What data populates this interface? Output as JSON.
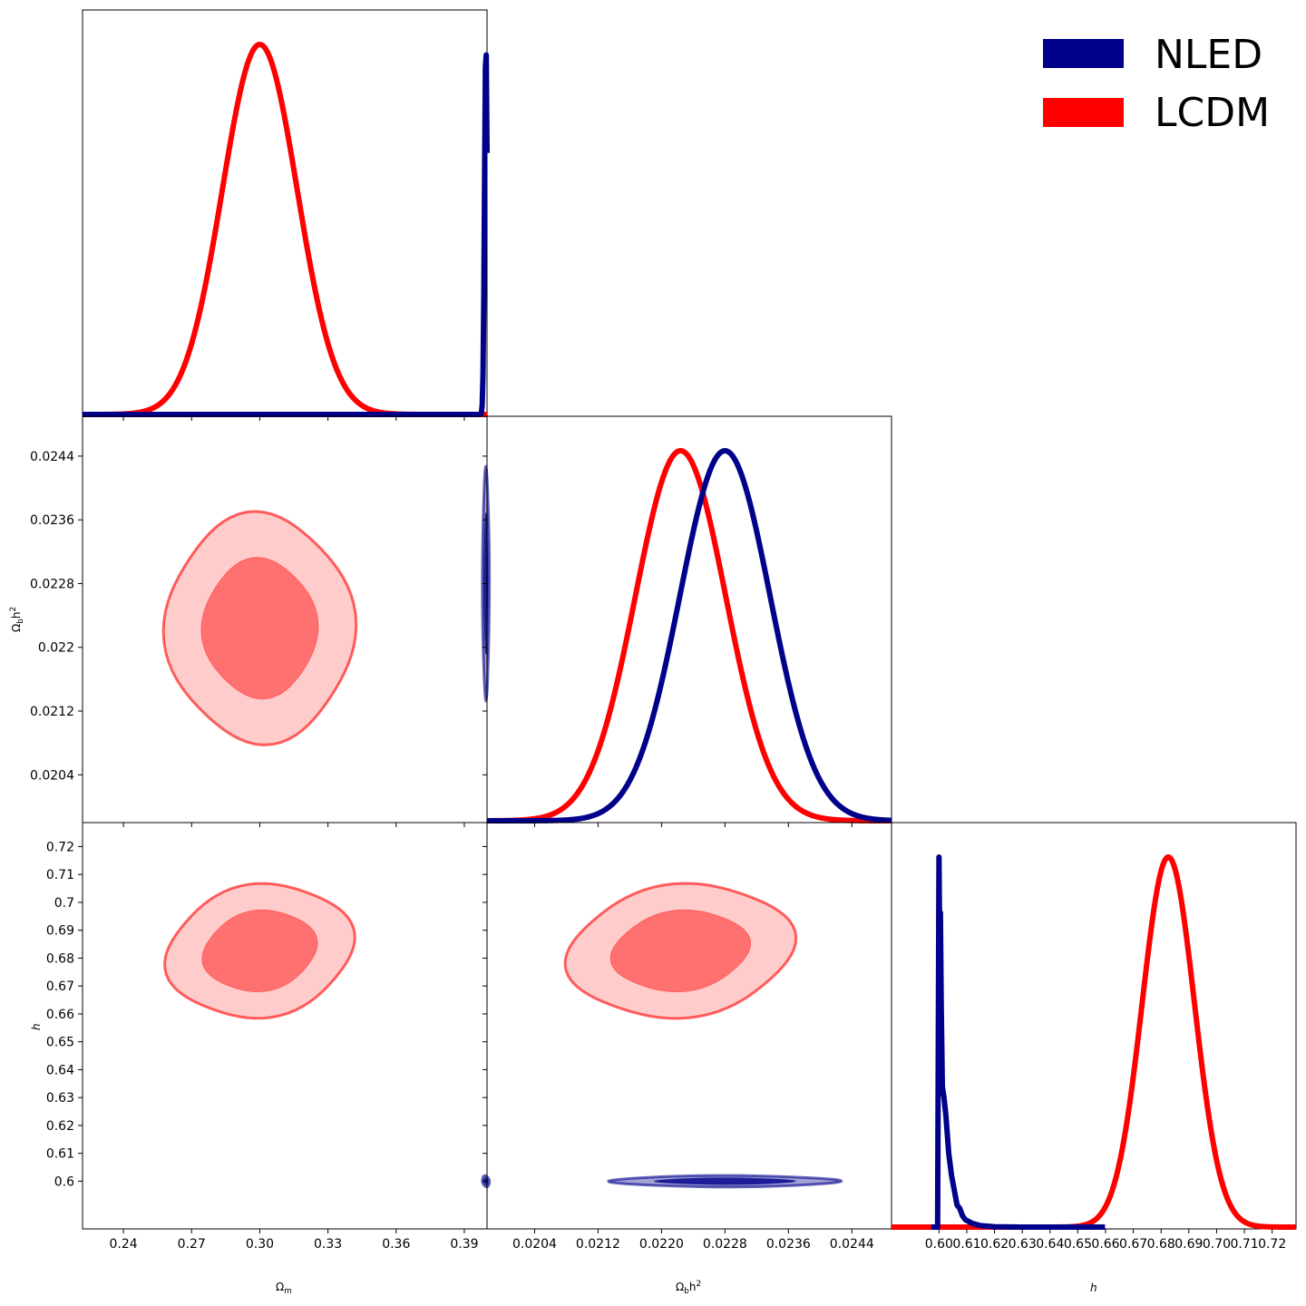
{
  "colors": {
    "NLED": "#00008b",
    "LCDM": "#ff0000"
  },
  "legend": {
    "placement": "top-right",
    "entries": [
      {
        "name": "NLED",
        "color": "#00008b"
      },
      {
        "name": "LCDM",
        "color": "#ff0000"
      }
    ]
  },
  "axis_labels": {
    "omega_m": {
      "base": "Ω",
      "sub": "m"
    },
    "omega_bh2": {
      "base": "Ω",
      "sub": "b",
      "main": "h",
      "sup": "2"
    },
    "h": {
      "base": "h"
    }
  },
  "chart_data": {
    "type": "corner",
    "parameters": [
      "Ω_m",
      "Ω_b h^2",
      "h"
    ],
    "ranges": {
      "omega_m": [
        0.222,
        0.4
      ],
      "omega_bh2": [
        0.0198,
        0.0249
      ],
      "h": [
        0.5829,
        0.7286
      ]
    },
    "ticks": {
      "omega_m": [
        "0.24",
        "0.27",
        "0.30",
        "0.33",
        "0.36",
        "0.39"
      ],
      "omega_bh2": [
        "0.0204",
        "0.0212",
        "0.0220",
        "0.0228",
        "0.0236",
        "0.0244"
      ],
      "omega_bh2_y": [
        "0.0204",
        "0.0212",
        "0.022",
        "0.0228",
        "0.0236",
        "0.0244"
      ],
      "h": [
        "0.60",
        "0.61",
        "0.62",
        "0.63",
        "0.64",
        "0.65",
        "0.66",
        "0.67",
        "0.68",
        "0.69",
        "0.70",
        "0.71",
        "0.72"
      ],
      "h_y": [
        "0.6",
        "0.61",
        "0.62",
        "0.63",
        "0.64",
        "0.65",
        "0.66",
        "0.67",
        "0.68",
        "0.69",
        "0.7",
        "0.71",
        "0.72"
      ]
    },
    "series": [
      {
        "name": "NLED",
        "color": "#00008b",
        "mean": {
          "omega_m": 0.3995,
          "omega_bh2": 0.0228,
          "h": 0.6
        },
        "sigma": {
          "omega_m": 0.0006,
          "omega_bh2": 0.00057,
          "h": 0.0008
        },
        "pdf_h": [
          [
            0.5972,
            0
          ],
          [
            0.5995,
            0
          ],
          [
            0.6,
            1
          ],
          [
            0.6003,
            0.7
          ],
          [
            0.6005,
            0.85
          ],
          [
            0.6008,
            0.6
          ],
          [
            0.6012,
            0.38
          ],
          [
            0.6018,
            0.35
          ],
          [
            0.6025,
            0.3
          ],
          [
            0.6035,
            0.2
          ],
          [
            0.6045,
            0.14
          ],
          [
            0.6055,
            0.1
          ],
          [
            0.6065,
            0.06
          ],
          [
            0.6075,
            0.05
          ],
          [
            0.6085,
            0.03
          ],
          [
            0.6095,
            0.02
          ],
          [
            0.612,
            0.01
          ],
          [
            0.615,
            0.004
          ],
          [
            0.62,
            0.001
          ],
          [
            0.63,
            0
          ],
          [
            0.6598,
            0
          ]
        ]
      },
      {
        "name": "LCDM",
        "color": "#ff0000",
        "mean": {
          "omega_m": 0.3,
          "omega_bh2": 0.02224,
          "h": 0.6826
        },
        "sigma": {
          "omega_m": 0.0165,
          "omega_bh2": 0.00057,
          "h": 0.0094
        }
      }
    ]
  }
}
